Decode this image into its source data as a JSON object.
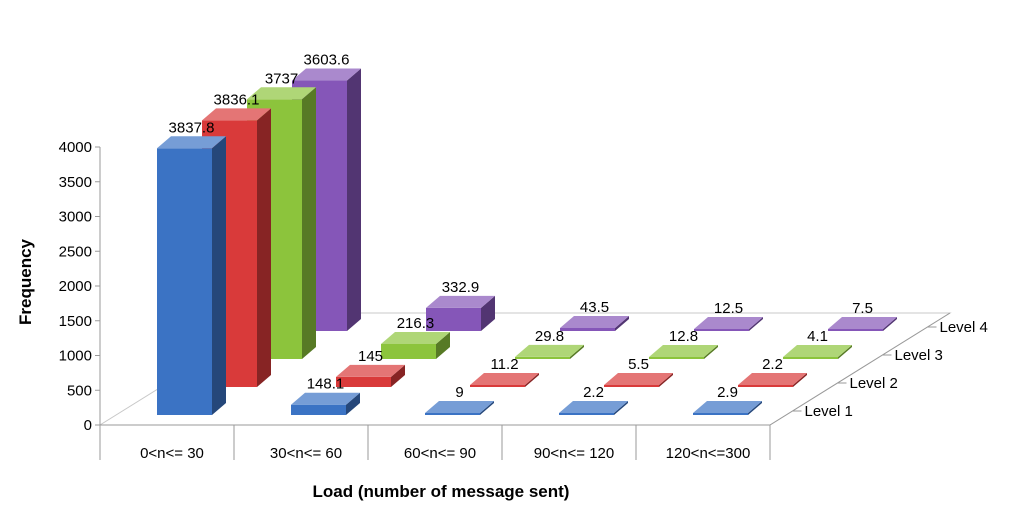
{
  "chart_data": {
    "type": "bar",
    "subtype": "3d-column",
    "categories": [
      "0<n<= 30",
      "30<n<= 60",
      "60<n<= 90",
      "90<n<= 120",
      "120<n<=300"
    ],
    "series": [
      {
        "name": "Level 1",
        "color": "#3b73c4",
        "values": [
          3837.8,
          148.1,
          9,
          2.2,
          2.9
        ],
        "labels": [
          "3837.8",
          "148.1",
          "9",
          "2.2",
          "2.9"
        ]
      },
      {
        "name": "Level 2",
        "color": "#d93a3a",
        "values": [
          3836.1,
          145,
          11.2,
          5.5,
          2.2
        ],
        "labels": [
          "3836.1",
          "145",
          "11.2",
          "5.5",
          "2.2"
        ]
      },
      {
        "name": "Level 3",
        "color": "#8cc43c",
        "values": [
          3737,
          216.3,
          29.8,
          12.8,
          4.1
        ],
        "labels": [
          "3737",
          "216.3",
          "29.8",
          "12.8",
          "4.1"
        ]
      },
      {
        "name": "Level 4",
        "color": "#8556b8",
        "values": [
          3603.6,
          332.9,
          43.5,
          12.5,
          7.5
        ],
        "labels": [
          "3603.6",
          "332.9",
          "43.5",
          "12.5",
          "7.5"
        ]
      }
    ],
    "xlabel": "Load (number of message sent)",
    "ylabel": "Frequency",
    "ylim": [
      0,
      4000
    ],
    "yticks": [
      0,
      500,
      1000,
      1500,
      2000,
      2500,
      3000,
      3500,
      4000
    ],
    "legend": "depth-axis-right",
    "grid": false
  }
}
